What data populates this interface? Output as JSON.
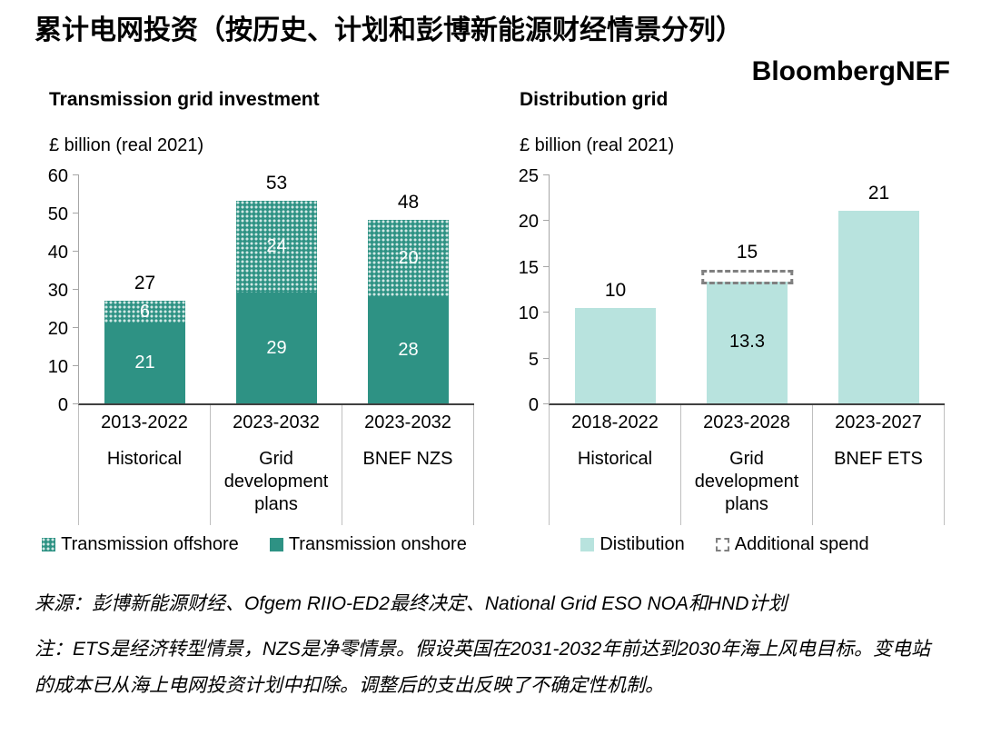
{
  "header": {
    "title": "累计电网投资（按历史、计划和彭博新能源财经情景分列）",
    "brand": "BloombergNEF"
  },
  "chart_data": [
    {
      "type": "bar",
      "stacked": true,
      "title": "Transmission grid investment",
      "ylabel": "£ billion (real 2021)",
      "ylim": [
        0,
        60
      ],
      "yticks": [
        0,
        10,
        20,
        30,
        40,
        50,
        60
      ],
      "grid": false,
      "categories": [
        [
          "2013-2022",
          "Historical"
        ],
        [
          "2023-2032",
          "Grid development plans"
        ],
        [
          "2023-2032",
          "BNEF NZS"
        ]
      ],
      "series": [
        {
          "name": "Transmission onshore",
          "values": [
            21,
            29,
            28
          ],
          "color": "#2e9284",
          "label_color": "#ffffff",
          "segment_labels": [
            "21",
            "29",
            "28"
          ]
        },
        {
          "name": "Transmission offshore",
          "values": [
            6,
            24,
            20
          ],
          "color": "#2e9284",
          "pattern": "dots",
          "label_color": "#ffffff",
          "segment_labels": [
            "6",
            "24",
            "20"
          ]
        }
      ],
      "top_labels": [
        {
          "text": "27",
          "at": 27
        },
        {
          "text": "53",
          "at": 53
        },
        {
          "text": "48",
          "at": 48
        }
      ],
      "legend": [
        {
          "type": "dots",
          "label": "Transmission offshore",
          "color": "#2e9284"
        },
        {
          "type": "solid",
          "label": "Transmission onshore",
          "color": "#2e9284"
        }
      ],
      "legend_position": "bottom"
    },
    {
      "type": "bar",
      "stacked": false,
      "title": "Distribution grid",
      "ylabel": "£ billion (real 2021)",
      "ylim": [
        0,
        25
      ],
      "yticks": [
        0,
        5,
        10,
        15,
        20,
        25
      ],
      "grid": false,
      "categories": [
        [
          "2018-2022",
          "Historical"
        ],
        [
          "2023-2028",
          "Grid development plans"
        ],
        [
          "2023-2027",
          "BNEF ETS"
        ]
      ],
      "series": [
        {
          "name": "Distibution",
          "values": [
            10.4,
            13.3,
            21
          ],
          "color": "#b8e3de",
          "label_color": "#000000",
          "segment_labels": [
            null,
            "13.3",
            null
          ]
        }
      ],
      "extra_box": {
        "label": "Additional spend",
        "index": 1,
        "from": 13.0,
        "to": 14.6,
        "border_color": "#808080"
      },
      "top_labels": [
        {
          "text": "10",
          "at": 10.4
        },
        {
          "text": "15",
          "at": 14.6
        },
        {
          "text": "21",
          "at": 21
        }
      ],
      "legend": [
        {
          "type": "solid",
          "label": "Distibution",
          "color": "#b8e3de"
        },
        {
          "type": "dashed",
          "label": "Additional spend",
          "color": "#808080"
        }
      ],
      "legend_position": "bottom"
    }
  ],
  "footer": {
    "source": "来源：彭博新能源财经、Ofgem RIIO-ED2最终决定、National Grid ESO NOA和HND计划",
    "note": "注：ETS是经济转型情景，NZS是净零情景。假设英国在2031-2032年前达到2030年海上风电目标。变电站的成本已从海上电网投资计划中扣除。调整后的支出反映了不确定性机制。"
  }
}
